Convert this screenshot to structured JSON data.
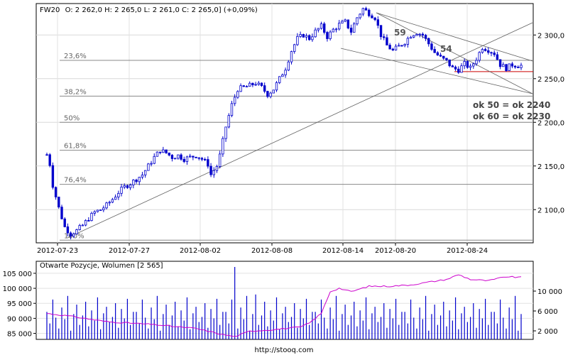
{
  "source_url": "http://stooq.com",
  "chart_data": [
    {
      "type": "candlestick",
      "instrument_header": "FW20",
      "header_text": "O: 2 262,0  H: 2 265,0  L: 2 261,0  C: 2 265,0] (+0,09%)",
      "ylim": [
        2062,
        2336
      ],
      "y_ticks": [
        {
          "value": 2100,
          "label": "2 100,0"
        },
        {
          "value": 2150,
          "label": "2 150,0"
        },
        {
          "value": 2200,
          "label": "2 200,0"
        },
        {
          "value": 2250,
          "label": "2 250,0"
        },
        {
          "value": 2300,
          "label": "2 300,0"
        }
      ],
      "x_ticks": [
        "2012-07-23",
        "2012-07-27",
        "2012-08-02",
        "2012-08-08",
        "2012-08-14",
        "2012-08-20",
        "2012-08-24"
      ],
      "price_path": [
        [
          0,
          2163
        ],
        [
          1,
          2152
        ],
        [
          2,
          2128
        ],
        [
          4,
          2102
        ],
        [
          6,
          2080
        ],
        [
          8,
          2072
        ],
        [
          10,
          2076
        ],
        [
          12,
          2082
        ],
        [
          14,
          2090
        ],
        [
          16,
          2097
        ],
        [
          18,
          2100
        ],
        [
          20,
          2105
        ],
        [
          22,
          2112
        ],
        [
          24,
          2120
        ],
        [
          26,
          2126
        ],
        [
          28,
          2130
        ],
        [
          30,
          2135
        ],
        [
          32,
          2140
        ],
        [
          34,
          2150
        ],
        [
          36,
          2160
        ],
        [
          38,
          2168
        ],
        [
          40,
          2165
        ],
        [
          42,
          2160
        ],
        [
          44,
          2162
        ],
        [
          46,
          2158
        ],
        [
          48,
          2160
        ],
        [
          50,
          2162
        ],
        [
          52,
          2158
        ],
        [
          54,
          2152
        ],
        [
          55,
          2140
        ],
        [
          57,
          2150
        ],
        [
          58,
          2162
        ],
        [
          60,
          2195
        ],
        [
          62,
          2220
        ],
        [
          64,
          2238
        ],
        [
          66,
          2240
        ],
        [
          68,
          2242
        ],
        [
          70,
          2245
        ],
        [
          72,
          2240
        ],
        [
          74,
          2232
        ],
        [
          76,
          2238
        ],
        [
          78,
          2250
        ],
        [
          80,
          2262
        ],
        [
          82,
          2282
        ],
        [
          84,
          2296
        ],
        [
          86,
          2300
        ],
        [
          88,
          2296
        ],
        [
          90,
          2304
        ],
        [
          92,
          2310
        ],
        [
          94,
          2298
        ],
        [
          96,
          2306
        ],
        [
          98,
          2312
        ],
        [
          100,
          2315
        ],
        [
          102,
          2304
        ],
        [
          104,
          2320
        ],
        [
          106,
          2330
        ],
        [
          108,
          2325
        ],
        [
          110,
          2320
        ],
        [
          112,
          2300
        ],
        [
          114,
          2288
        ],
        [
          116,
          2282
        ],
        [
          118,
          2287
        ],
        [
          120,
          2292
        ],
        [
          122,
          2300
        ],
        [
          124,
          2303
        ],
        [
          126,
          2300
        ],
        [
          128,
          2290
        ],
        [
          130,
          2280
        ],
        [
          132,
          2274
        ],
        [
          134,
          2270
        ],
        [
          136,
          2262
        ],
        [
          138,
          2260
        ],
        [
          140,
          2267
        ],
        [
          142,
          2262
        ],
        [
          144,
          2273
        ],
        [
          146,
          2286
        ],
        [
          148,
          2283
        ],
        [
          150,
          2279
        ],
        [
          152,
          2266
        ],
        [
          154,
          2262
        ],
        [
          156,
          2266
        ],
        [
          158,
          2265
        ]
      ],
      "fibonacci": [
        {
          "label": "23,6%",
          "value": 2271
        },
        {
          "label": "38,2%",
          "value": 2230
        },
        {
          "label": "50%",
          "value": 2200
        },
        {
          "label": "61,8%",
          "value": 2168
        },
        {
          "label": "76,4%",
          "value": 2129
        },
        {
          "label": "100%",
          "value": 2065
        }
      ],
      "fib_label_bottom": "100%",
      "reference_line_value": 2258,
      "annotations": [
        {
          "text": "59",
          "x": 547,
          "y": 50
        },
        {
          "text": "54",
          "x": 620,
          "y": 73
        }
      ],
      "annotation_notes": [
        "ok 50 = ok 2240",
        "ok 60 = ok 2230"
      ],
      "trendlines": [
        {
          "from": [
            95,
            335
          ],
          "to": [
            750,
            32
          ]
        },
        {
          "from": [
            530,
            18
          ],
          "to": [
            750,
            86
          ]
        },
        {
          "from": [
            480,
            68
          ],
          "to": [
            750,
            132
          ]
        },
        {
          "from": [
            530,
            18
          ],
          "to": [
            750,
            132
          ]
        }
      ],
      "colors": {
        "candles": "#0000cc",
        "fib_line": "#888888",
        "reference_line": "#cc0000",
        "trend": "#606060"
      }
    },
    {
      "type": "bar+line",
      "title": "Otwarte Pozycje, Wolumen [2 565]",
      "y_left_ticks": [
        "85 000",
        "90 000",
        "95 000",
        "100 000",
        "105 000"
      ],
      "y_right_ticks": [
        "2 000",
        "6 000",
        "10 000"
      ],
      "volume_pattern": [
        38,
        22,
        55,
        30,
        15,
        44,
        28,
        60,
        12,
        35,
        48,
        20,
        33,
        52,
        18,
        40,
        26,
        58,
        14,
        36,
        45,
        24,
        31,
        50,
        16,
        42,
        29,
        56,
        20,
        38
      ],
      "volume_spikes": [
        {
          "index": 63,
          "value": 100
        },
        {
          "index": 70,
          "value": 62
        }
      ],
      "open_interest": [
        [
          0,
          38
        ],
        [
          8,
          34
        ],
        [
          20,
          26
        ],
        [
          35,
          22
        ],
        [
          50,
          16
        ],
        [
          58,
          8
        ],
        [
          63,
          4
        ],
        [
          68,
          12
        ],
        [
          75,
          14
        ],
        [
          80,
          16
        ],
        [
          85,
          18
        ],
        [
          88,
          24
        ],
        [
          92,
          38
        ],
        [
          95,
          70
        ],
        [
          98,
          75
        ],
        [
          102,
          70
        ],
        [
          108,
          78
        ],
        [
          115,
          78
        ],
        [
          122,
          80
        ],
        [
          128,
          84
        ],
        [
          134,
          88
        ],
        [
          138,
          95
        ],
        [
          142,
          88
        ],
        [
          148,
          86
        ],
        [
          154,
          92
        ],
        [
          158,
          91
        ]
      ],
      "colors": {
        "volume": "#0000cc",
        "open_interest": "#cc00cc"
      }
    }
  ]
}
